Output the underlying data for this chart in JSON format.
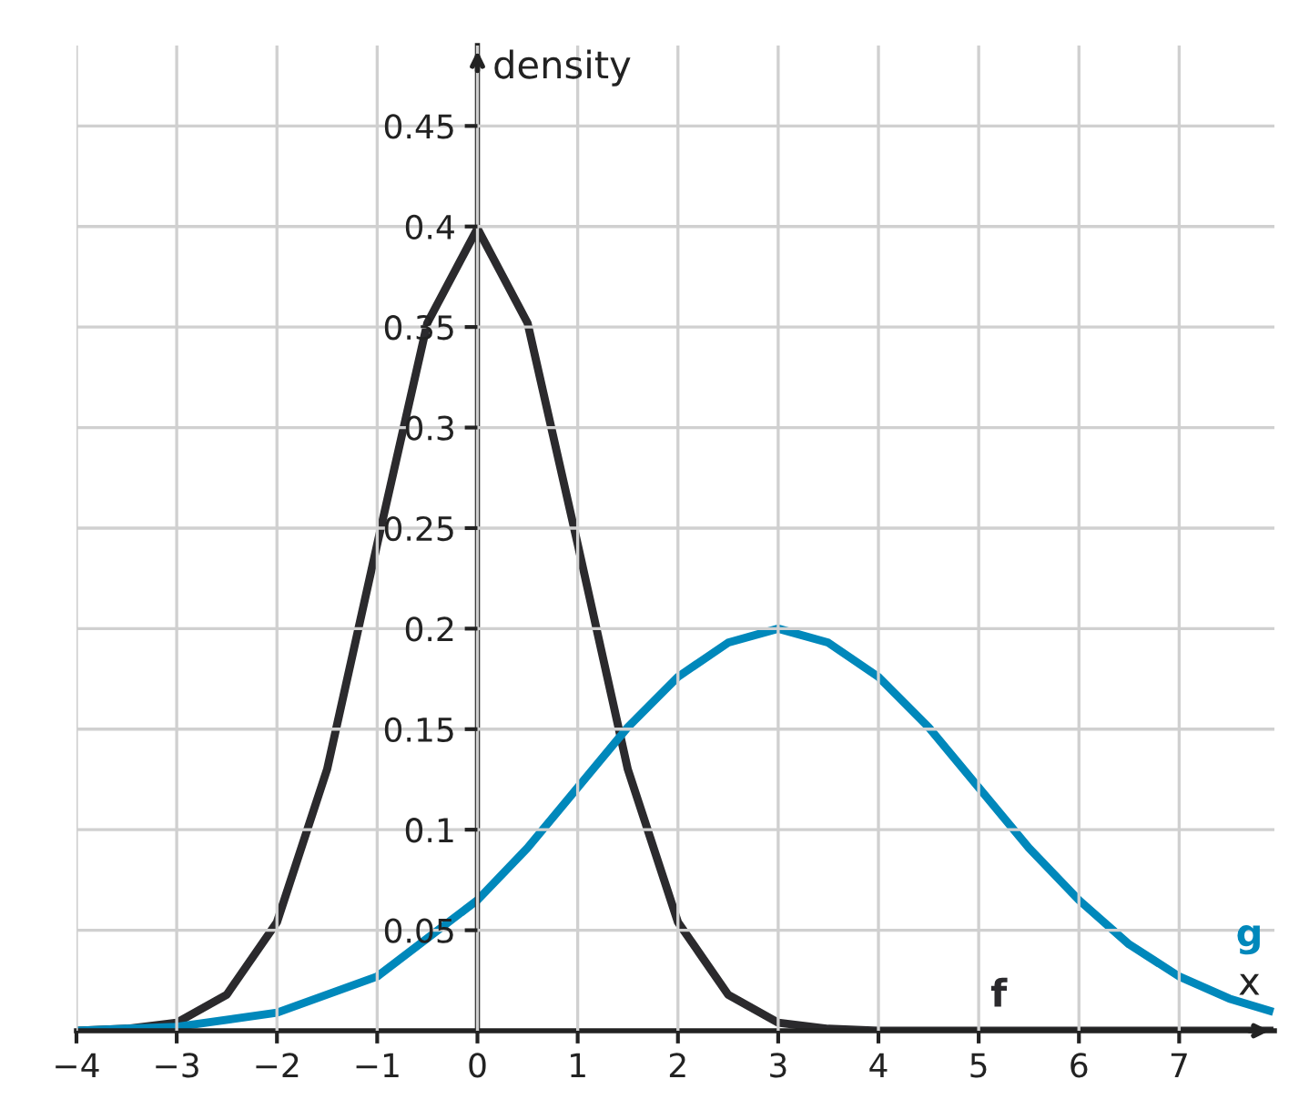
{
  "chart_data": {
    "type": "line",
    "xlabel": "x",
    "ylabel": "density",
    "series": [
      {
        "name": "f",
        "color": "#2b2a2d",
        "x": [
          -4,
          -3.5,
          -3,
          -2.5,
          -2,
          -1.5,
          -1,
          -0.5,
          0,
          0.5,
          1,
          1.5,
          2,
          2.5,
          3,
          3.5,
          4,
          5,
          6,
          7,
          7.9
        ],
        "values": [
          0,
          0.001,
          0.004,
          0.018,
          0.054,
          0.13,
          0.242,
          0.352,
          0.399,
          0.352,
          0.242,
          0.13,
          0.054,
          0.018,
          0.004,
          0.001,
          0,
          0,
          0,
          0,
          0
        ]
      },
      {
        "name": "g",
        "color": "#0088bb",
        "x": [
          -4,
          -3.5,
          -3,
          -2,
          -1,
          0,
          0.5,
          1,
          1.5,
          2,
          2.5,
          3,
          3.5,
          4,
          4.5,
          5,
          5.5,
          6,
          6.5,
          7,
          7.5,
          7.9
        ],
        "values": [
          0,
          0.001,
          0.002,
          0.009,
          0.027,
          0.065,
          0.091,
          0.121,
          0.151,
          0.176,
          0.193,
          0.2,
          0.193,
          0.176,
          0.151,
          0.121,
          0.091,
          0.065,
          0.043,
          0.027,
          0.016,
          0.01
        ]
      }
    ],
    "xlim": [
      -4,
      7.95
    ],
    "ylim": [
      0,
      0.49
    ],
    "xticks": [
      {
        "value": -4,
        "label": "−4"
      },
      {
        "value": -3,
        "label": "−3"
      },
      {
        "value": -2,
        "label": "−2"
      },
      {
        "value": -1,
        "label": "−1"
      },
      0,
      1,
      2,
      3,
      4,
      5,
      6,
      7
    ],
    "yticks": [
      0.05,
      0.1,
      0.15,
      0.2,
      0.25,
      0.3,
      0.35,
      0.4,
      0.45
    ],
    "grid": true,
    "legend": false,
    "marker": "none",
    "line_style": "solid"
  }
}
